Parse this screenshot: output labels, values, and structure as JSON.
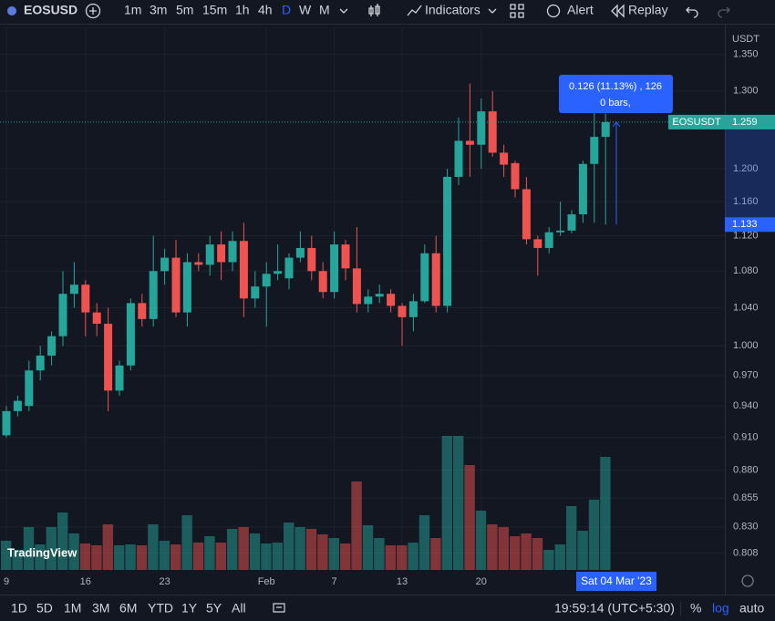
{
  "toolbar": {
    "symbol": "EOSUSD",
    "intervals": [
      "1m",
      "3m",
      "5m",
      "15m",
      "1h",
      "4h",
      "D",
      "W",
      "M"
    ],
    "indicators": "Indicators",
    "alert": "Alert",
    "replay": "Replay"
  },
  "chart_data": {
    "type": "candlestick",
    "currency": "USDT",
    "log_scale": true,
    "ylim": [
      0.794,
      1.388
    ],
    "yticks": [
      {
        "value": 1.35,
        "label": "1.350"
      },
      {
        "value": 1.3,
        "label": "1.300"
      },
      {
        "value": 1.2,
        "label": "1.200"
      },
      {
        "value": 1.16,
        "label": "1.160"
      },
      {
        "value": 1.12,
        "label": "1.120"
      },
      {
        "value": 1.08,
        "label": "1.080"
      },
      {
        "value": 1.04,
        "label": "1.040"
      },
      {
        "value": 1,
        "label": "1.000"
      },
      {
        "value": 0.97,
        "label": "0.970"
      },
      {
        "value": 0.94,
        "label": "0.940"
      },
      {
        "value": 0.91,
        "label": "0.910"
      },
      {
        "value": 0.88,
        "label": "0.880"
      },
      {
        "value": 0.855,
        "label": "0.855"
      },
      {
        "value": 0.83,
        "label": "0.830"
      },
      {
        "value": 0.808,
        "label": "0.808"
      }
    ],
    "categories": [
      "9",
      null,
      null,
      null,
      null,
      null,
      null,
      "16",
      null,
      null,
      null,
      null,
      null,
      null,
      "23",
      null,
      null,
      null,
      null,
      null,
      null,
      null,
      null,
      "Feb",
      null,
      null,
      null,
      null,
      null,
      "7",
      null,
      null,
      null,
      null,
      null,
      "13",
      null,
      null,
      null,
      null,
      null,
      null,
      "20",
      null,
      null,
      null,
      null,
      null,
      null,
      null,
      null,
      null,
      null,
      null
    ],
    "candles": [
      {
        "open": 0.912,
        "high": 0.94,
        "low": 0.91,
        "close": 0.935
      },
      {
        "open": 0.935,
        "high": 0.95,
        "low": 0.93,
        "close": 0.945
      },
      {
        "open": 0.94,
        "high": 0.985,
        "low": 0.935,
        "close": 0.975
      },
      {
        "open": 0.975,
        "high": 1.0,
        "low": 0.965,
        "close": 0.99
      },
      {
        "open": 0.99,
        "high": 1.015,
        "low": 0.98,
        "close": 1.01
      },
      {
        "open": 1.01,
        "high": 1.08,
        "low": 1.0,
        "close": 1.055
      },
      {
        "open": 1.055,
        "high": 1.09,
        "low": 1.04,
        "close": 1.065
      },
      {
        "open": 1.065,
        "high": 1.07,
        "low": 1.01,
        "close": 1.035
      },
      {
        "open": 1.035,
        "high": 1.045,
        "low": 1.01,
        "close": 1.023
      },
      {
        "open": 1.023,
        "high": 1.04,
        "low": 0.935,
        "close": 0.955
      },
      {
        "open": 0.955,
        "high": 0.985,
        "low": 0.95,
        "close": 0.98
      },
      {
        "open": 0.98,
        "high": 1.05,
        "low": 0.975,
        "close": 1.045
      },
      {
        "open": 1.045,
        "high": 1.055,
        "low": 1.02,
        "close": 1.028
      },
      {
        "open": 1.028,
        "high": 1.12,
        "low": 1.02,
        "close": 1.08
      },
      {
        "open": 1.08,
        "high": 1.105,
        "low": 1.065,
        "close": 1.095
      },
      {
        "open": 1.095,
        "high": 1.115,
        "low": 1.03,
        "close": 1.035
      },
      {
        "open": 1.035,
        "high": 1.1,
        "low": 1.02,
        "close": 1.09
      },
      {
        "open": 1.09,
        "high": 1.1,
        "low": 1.08,
        "close": 1.087
      },
      {
        "open": 1.087,
        "high": 1.12,
        "low": 1.075,
        "close": 1.11
      },
      {
        "open": 1.11,
        "high": 1.125,
        "low": 1.07,
        "close": 1.09
      },
      {
        "open": 1.09,
        "high": 1.125,
        "low": 1.08,
        "close": 1.114
      },
      {
        "open": 1.114,
        "high": 1.135,
        "low": 1.03,
        "close": 1.05
      },
      {
        "open": 1.05,
        "high": 1.08,
        "low": 1.04,
        "close": 1.063
      },
      {
        "open": 1.063,
        "high": 1.09,
        "low": 1.02,
        "close": 1.077
      },
      {
        "open": 1.077,
        "high": 1.11,
        "low": 1.07,
        "close": 1.08
      },
      {
        "open": 1.072,
        "high": 1.1,
        "low": 1.06,
        "close": 1.095
      },
      {
        "open": 1.095,
        "high": 1.125,
        "low": 1.09,
        "close": 1.106
      },
      {
        "open": 1.106,
        "high": 1.12,
        "low": 1.07,
        "close": 1.08
      },
      {
        "open": 1.08,
        "high": 1.09,
        "low": 1.05,
        "close": 1.057
      },
      {
        "open": 1.057,
        "high": 1.125,
        "low": 1.05,
        "close": 1.11
      },
      {
        "open": 1.11,
        "high": 1.115,
        "low": 1.07,
        "close": 1.083
      },
      {
        "open": 1.083,
        "high": 1.13,
        "low": 1.035,
        "close": 1.044
      },
      {
        "open": 1.044,
        "high": 1.06,
        "low": 1.035,
        "close": 1.052
      },
      {
        "open": 1.052,
        "high": 1.065,
        "low": 1.045,
        "close": 1.055
      },
      {
        "open": 1.055,
        "high": 1.06,
        "low": 1.035,
        "close": 1.042
      },
      {
        "open": 1.042,
        "high": 1.045,
        "low": 1.0,
        "close": 1.03
      },
      {
        "open": 1.03,
        "high": 1.055,
        "low": 1.015,
        "close": 1.047
      },
      {
        "open": 1.047,
        "high": 1.11,
        "low": 1.045,
        "close": 1.1
      },
      {
        "open": 1.1,
        "high": 1.12,
        "low": 1.035,
        "close": 1.042
      },
      {
        "open": 1.042,
        "high": 1.2,
        "low": 1.035,
        "close": 1.19
      },
      {
        "open": 1.19,
        "high": 1.265,
        "low": 1.18,
        "close": 1.235
      },
      {
        "open": 1.235,
        "high": 1.31,
        "low": 1.19,
        "close": 1.23
      },
      {
        "open": 1.23,
        "high": 1.29,
        "low": 1.2,
        "close": 1.273
      },
      {
        "open": 1.273,
        "high": 1.3,
        "low": 1.215,
        "close": 1.22
      },
      {
        "open": 1.22,
        "high": 1.23,
        "low": 1.19,
        "close": 1.205
      },
      {
        "open": 1.207,
        "high": 1.21,
        "low": 1.165,
        "close": 1.175
      },
      {
        "open": 1.175,
        "high": 1.19,
        "low": 1.11,
        "close": 1.116
      },
      {
        "open": 1.116,
        "high": 1.12,
        "low": 1.075,
        "close": 1.106
      },
      {
        "open": 1.106,
        "high": 1.13,
        "low": 1.1,
        "close": 1.124
      },
      {
        "open": 1.124,
        "high": 1.16,
        "low": 1.12,
        "close": 1.126
      },
      {
        "open": 1.126,
        "high": 1.15,
        "low": 1.123,
        "close": 1.145
      },
      {
        "open": 1.145,
        "high": 1.21,
        "low": 1.135,
        "close": 1.206
      },
      {
        "open": 1.206,
        "high": 1.28,
        "low": 1.135,
        "close": 1.24
      },
      {
        "open": 1.24,
        "high": 1.27,
        "low": 1.133,
        "close": 1.259
      }
    ],
    "volume": [
      32,
      22,
      47,
      28,
      47,
      63,
      40,
      29,
      27,
      50,
      27,
      28,
      27,
      50,
      32,
      28,
      60,
      30,
      37,
      30,
      45,
      47,
      40,
      29,
      30,
      52,
      47,
      45,
      39,
      35,
      29,
      97,
      49,
      35,
      27,
      27,
      30,
      60,
      35,
      147,
      147,
      115,
      65,
      50,
      47,
      37,
      40,
      35,
      22,
      28,
      70,
      43,
      77,
      124
    ],
    "up_color": "#26a69a",
    "down_color": "#ef5350",
    "last_price": {
      "label": "EOSUSDT",
      "value": 1.259
    },
    "measure": {
      "start": 1.133,
      "end": 1.259,
      "text": "0.126 (11.13%) , 126",
      "bars": "0 bars,"
    },
    "crosshair_date": "Sat 04 Mar '23",
    "watermark": "TradingView"
  },
  "bottom_bar": {
    "ranges": [
      "1D",
      "5D",
      "1M",
      "3M",
      "6M",
      "YTD",
      "1Y",
      "5Y",
      "All"
    ],
    "clock": "19:59:14 (UTC+5:30)",
    "percent": "%",
    "log": "log",
    "auto": "auto"
  }
}
